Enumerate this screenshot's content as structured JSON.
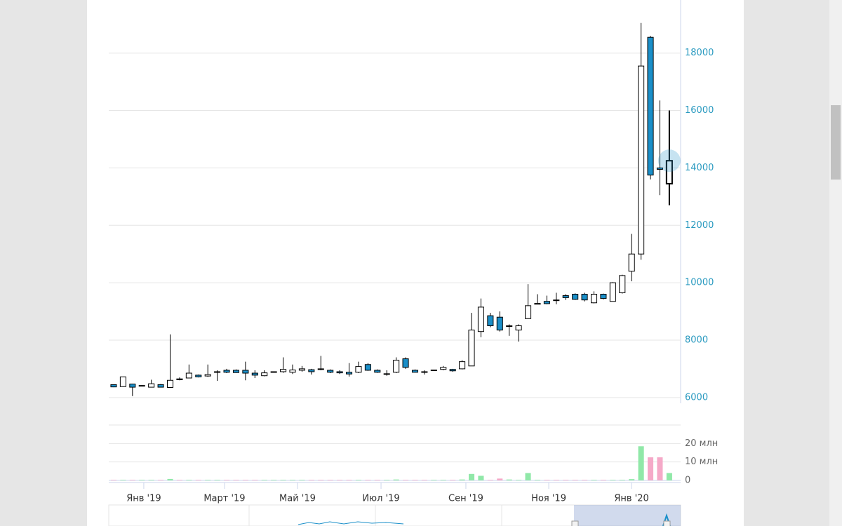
{
  "chart_data": {
    "type": "candlestick",
    "categories": [
      null,
      null,
      null,
      null,
      null,
      null,
      null,
      null,
      null,
      null,
      null,
      null,
      null,
      null,
      null,
      null,
      null,
      null,
      null,
      null,
      null,
      null,
      null,
      null,
      null,
      null,
      null,
      null,
      null,
      null,
      null,
      null,
      null,
      null,
      null,
      null,
      null,
      null,
      null,
      null,
      null,
      null,
      null,
      null,
      null,
      null,
      null,
      null,
      null,
      null,
      null,
      null,
      null,
      null,
      null,
      null,
      null,
      null,
      null,
      null
    ],
    "open": [
      6450,
      6380,
      6470,
      6400,
      6360,
      6450,
      6350,
      6650,
      6680,
      6780,
      6750,
      6880,
      6950,
      6950,
      6950,
      6850,
      6760,
      6880,
      6900,
      6880,
      6950,
      6970,
      7000,
      6950,
      6900,
      6880,
      6880,
      7150,
      6950,
      6820,
      6880,
      7350,
      6950,
      6900,
      6950,
      6980,
      6980,
      7000,
      7100,
      8300,
      8850,
      8800,
      8480,
      8350,
      8750,
      9250,
      9350,
      9400,
      9550,
      9600,
      9600,
      9300,
      9600,
      9350,
      9650,
      10400,
      11000,
      18550,
      14000,
      13450
    ],
    "high": [
      6460,
      6730,
      6480,
      6430,
      6620,
      6470,
      8200,
      6700,
      7150,
      6800,
      7150,
      6950,
      7000,
      6980,
      7250,
      6950,
      6950,
      6910,
      7400,
      7150,
      7100,
      7000,
      7450,
      6980,
      6950,
      7200,
      7250,
      7200,
      6980,
      6950,
      7400,
      7400,
      6980,
      6950,
      6970,
      7100,
      7000,
      7300,
      8950,
      9450,
      8950,
      9000,
      8550,
      8550,
      9950,
      9600,
      9550,
      9650,
      9600,
      9630,
      9650,
      9700,
      9620,
      10020,
      10280,
      11700,
      19050,
      18600,
      16350,
      16000
    ],
    "low": [
      6360,
      6370,
      6050,
      6390,
      6350,
      6350,
      6340,
      6600,
      6670,
      6700,
      6720,
      6580,
      6850,
      6860,
      6600,
      6680,
      6740,
      6870,
      6860,
      6820,
      6900,
      6800,
      6950,
      6850,
      6820,
      6730,
      6850,
      6930,
      6860,
      6760,
      6850,
      7000,
      6870,
      6800,
      6940,
      6950,
      6900,
      6980,
      7100,
      8100,
      8450,
      8300,
      8150,
      7950,
      8750,
      9250,
      9250,
      9250,
      9400,
      9400,
      9350,
      9280,
      9420,
      9350,
      9620,
      10050,
      10800,
      13600,
      13050,
      12700
    ],
    "close": [
      6370,
      6720,
      6360,
      6420,
      6480,
      6360,
      6600,
      6620,
      6850,
      6720,
      6800,
      6900,
      6880,
      6870,
      6850,
      6780,
      6860,
      6900,
      6980,
      6960,
      7000,
      6900,
      6980,
      6880,
      6860,
      6820,
      7080,
      6950,
      6880,
      6830,
      7300,
      7050,
      6880,
      6890,
      6960,
      7050,
      6930,
      7250,
      8350,
      9150,
      8500,
      8350,
      8500,
      8500,
      9200,
      9280,
      9270,
      9380,
      9480,
      9420,
      9400,
      9600,
      9450,
      10000,
      10250,
      11000,
      17550,
      13750,
      13950,
      14250
    ],
    "volume": [
      0.3,
      0.3,
      0.3,
      0.3,
      0.3,
      0.3,
      0.8,
      0.3,
      0.3,
      0.3,
      0.3,
      0.3,
      0.3,
      0.3,
      0.3,
      0.3,
      0.3,
      0.3,
      0.3,
      0.3,
      0.3,
      0.3,
      0.3,
      0.3,
      0.3,
      0.3,
      0.3,
      0.3,
      0.3,
      0.3,
      0.5,
      0.3,
      0.3,
      0.3,
      0.3,
      0.3,
      0.3,
      0.5,
      3.5,
      2.5,
      0.3,
      1,
      0.5,
      0.3,
      4,
      0.3,
      0.3,
      0.3,
      0.3,
      0.3,
      0.3,
      0.3,
      0.3,
      0.3,
      0.3,
      0.7,
      18.5,
      12.5,
      12.5,
      4
    ],
    "up_color": "#ffffff",
    "down_color": "#1a8fc9",
    "volume_up_color": "#90e8a8",
    "volume_down_color": "#f5a9c8",
    "ylim": [
      5800,
      19850
    ],
    "yticks": [
      6000,
      8000,
      10000,
      12000,
      14000,
      16000,
      18000
    ],
    "volume_ylim": [
      0,
      30
    ],
    "volume_ticks": [
      0,
      {
        "value": 10,
        "label": "10 млн"
      },
      {
        "value": 20,
        "label": "20 млн"
      }
    ],
    "xlim": [
      -0.52,
      60.2
    ],
    "xticks": [
      {
        "value": 3.2,
        "label": "Янв '19"
      },
      {
        "value": 11.77,
        "label": "Март '19"
      },
      {
        "value": 19.52,
        "label": "Май '19"
      },
      {
        "value": 28.39,
        "label": "Июл '19"
      },
      {
        "value": 37.4,
        "label": "Сен '19"
      },
      {
        "value": 46.2,
        "label": "Ноя '19"
      },
      {
        "value": 54.99,
        "label": "Янв '20"
      }
    ],
    "grid": true
  }
}
